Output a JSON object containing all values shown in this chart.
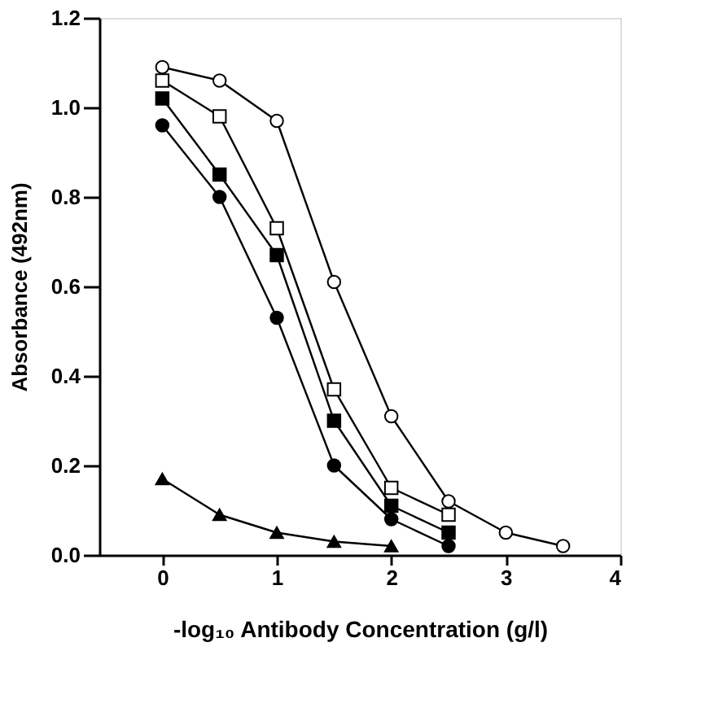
{
  "chart_data": {
    "type": "line",
    "xlabel": "-log₁₀ Antibody Concentration (g/l)",
    "ylabel": "Absorbance  (492nm)",
    "xlim": [
      -0.55,
      4
    ],
    "xticks": [
      0,
      1,
      2,
      3,
      4
    ],
    "ylim": [
      0,
      1.2
    ],
    "yticks": [
      {
        "value": 0,
        "label": "0.0"
      },
      {
        "value": 0.2,
        "label": "0.2"
      },
      {
        "value": 0.4,
        "label": "0.4"
      },
      {
        "value": 0.6,
        "label": "0.6"
      },
      {
        "value": 0.8,
        "label": "0.8"
      },
      {
        "value": 1,
        "label": "1.0"
      },
      {
        "value": 1.2,
        "label": "1.2"
      }
    ],
    "grid": false,
    "line_style": "solid",
    "series": [
      {
        "marker": "circle",
        "color": "#ffffff",
        "x": [
          0,
          0.5,
          1,
          1.5,
          2,
          2.5,
          3,
          3.5
        ],
        "values": [
          1.09,
          1.06,
          0.97,
          0.61,
          0.31,
          0.12,
          0.05,
          0.02
        ]
      },
      {
        "marker": "square",
        "color": "#ffffff",
        "x": [
          0,
          0.5,
          1,
          1.5,
          2,
          2.5
        ],
        "values": [
          1.06,
          0.98,
          0.73,
          0.37,
          0.15,
          0.09
        ]
      },
      {
        "marker": "square",
        "color": "#000000",
        "x": [
          0,
          0.5,
          1,
          1.5,
          2,
          2.5
        ],
        "values": [
          1.02,
          0.85,
          0.67,
          0.3,
          0.11,
          0.05
        ]
      },
      {
        "marker": "circle",
        "color": "#000000",
        "x": [
          0,
          0.5,
          1,
          1.5,
          2,
          2.5
        ],
        "values": [
          0.96,
          0.8,
          0.53,
          0.2,
          0.08,
          0.02
        ]
      },
      {
        "marker": "triangle",
        "color": "#000000",
        "x": [
          0,
          0.5,
          1,
          1.5,
          2
        ],
        "values": [
          0.17,
          0.09,
          0.05,
          0.03,
          0.02
        ]
      }
    ]
  }
}
